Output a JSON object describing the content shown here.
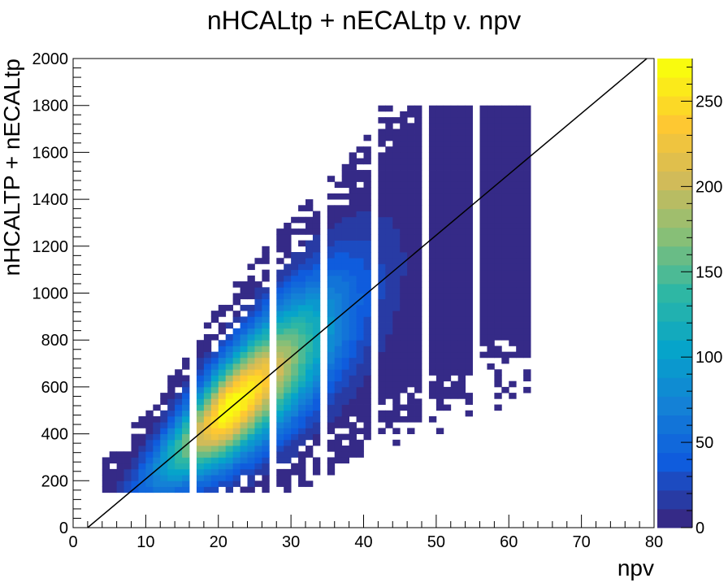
{
  "chart_data": {
    "type": "heatmap",
    "title": "nHCALtp + nECALtp v. npv",
    "xlabel": "npv",
    "ylabel": "nHCALTP + nECALtp",
    "xlim": [
      0,
      80
    ],
    "ylim": [
      0,
      2000
    ],
    "x_ticks": [
      "0",
      "10",
      "20",
      "30",
      "40",
      "50",
      "60",
      "70",
      "80"
    ],
    "y_ticks": [
      "0",
      "200",
      "400",
      "600",
      "800",
      "1000",
      "1200",
      "1400",
      "1600",
      "1800",
      "2000"
    ],
    "colorbar": {
      "range": [
        0,
        275
      ],
      "ticks": [
        "0",
        "50",
        "100",
        "150",
        "200",
        "250"
      ]
    },
    "fit_line": {
      "x": [
        2,
        79
      ],
      "y": [
        0,
        2000
      ]
    },
    "density_model": {
      "slope": 25.9,
      "intercept": -52,
      "peak_x": 21,
      "peak_count": 275,
      "empty_columns": [
        16,
        27,
        34,
        41,
        48,
        55
      ]
    },
    "grid": false,
    "legend": "colorbar-right"
  }
}
